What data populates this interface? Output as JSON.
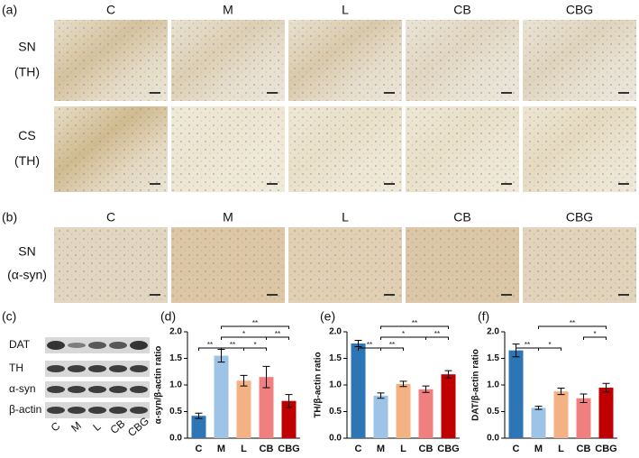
{
  "figure": {
    "panel_a": {
      "letter": "(a)",
      "columns": [
        "C",
        "M",
        "L",
        "CB",
        "CBG"
      ],
      "rows": [
        [
          "SN",
          "(TH)"
        ],
        [
          "CS",
          "(TH)"
        ]
      ]
    },
    "panel_b": {
      "letter": "(b)",
      "columns": [
        "C",
        "M",
        "L",
        "CB",
        "CBG"
      ],
      "rows": [
        [
          "SN",
          "(α-syn)"
        ]
      ]
    },
    "panel_c": {
      "letter": "(c)",
      "proteins": [
        "DAT",
        "TH",
        "α-syn",
        "β-actin"
      ],
      "lanes": [
        "C",
        "M",
        "L",
        "CB",
        "CBG"
      ]
    }
  },
  "chart_data": [
    {
      "type": "bar",
      "letter": "(d)",
      "ylabel": "α-syn/β-actin ratio",
      "categories": [
        "C",
        "M",
        "L",
        "CB",
        "CBG"
      ],
      "values": [
        0.42,
        1.55,
        1.08,
        1.15,
        0.7
      ],
      "errors": [
        0.05,
        0.12,
        0.1,
        0.2,
        0.12
      ],
      "colors": [
        "#2e75b6",
        "#9dc3e6",
        "#f4b183",
        "#f08080",
        "#c00000"
      ],
      "ylim": [
        0,
        2
      ],
      "yticks": [
        {
          "value": 0,
          "label": "0.0"
        },
        0.5,
        {
          "value": 1,
          "label": "1.0"
        },
        1.5,
        {
          "value": 2,
          "label": "2.0"
        }
      ],
      "brackets": [
        {
          "between": [
            0,
            1
          ],
          "row": 0,
          "label": "**"
        },
        {
          "between": [
            1,
            2
          ],
          "row": 0,
          "label": "**"
        },
        {
          "between": [
            2,
            3
          ],
          "row": 0,
          "label": "*"
        },
        {
          "between": [
            1,
            3
          ],
          "row": 1,
          "label": "*"
        },
        {
          "between": [
            3,
            4
          ],
          "row": 1,
          "label": "**"
        },
        {
          "between": [
            1,
            4
          ],
          "row": 2,
          "label": "**"
        }
      ]
    },
    {
      "type": "bar",
      "letter": "(e)",
      "ylabel": "TH/β-actin ratio",
      "categories": [
        "C",
        "M",
        "L",
        "CB",
        "CBG"
      ],
      "values": [
        1.78,
        0.8,
        1.02,
        0.92,
        1.2
      ],
      "errors": [
        0.06,
        0.05,
        0.05,
        0.06,
        0.07
      ],
      "colors": [
        "#2e75b6",
        "#9dc3e6",
        "#f4b183",
        "#f08080",
        "#c00000"
      ],
      "ylim": [
        0,
        2
      ],
      "yticks": [
        {
          "value": 0,
          "label": "0.0"
        },
        0.5,
        {
          "value": 1,
          "label": "1.0"
        },
        1.5,
        {
          "value": 2,
          "label": "2.0"
        }
      ],
      "brackets": [
        {
          "between": [
            0,
            1
          ],
          "row": 0,
          "label": "**"
        },
        {
          "between": [
            1,
            2
          ],
          "row": 0,
          "label": "**"
        },
        {
          "between": [
            1,
            3
          ],
          "row": 1,
          "label": "*"
        },
        {
          "between": [
            3,
            4
          ],
          "row": 1,
          "label": "**"
        },
        {
          "between": [
            1,
            4
          ],
          "row": 2,
          "label": "**"
        }
      ]
    },
    {
      "type": "bar",
      "letter": "(f)",
      "ylabel": "DAT/β-actin ratio",
      "categories": [
        "C",
        "M",
        "L",
        "CB",
        "CBG"
      ],
      "values": [
        1.65,
        0.57,
        0.88,
        0.75,
        0.95
      ],
      "errors": [
        0.12,
        0.03,
        0.06,
        0.08,
        0.08
      ],
      "colors": [
        "#2e75b6",
        "#9dc3e6",
        "#f4b183",
        "#f08080",
        "#c00000"
      ],
      "ylim": [
        0,
        2
      ],
      "yticks": [
        {
          "value": 0,
          "label": "0.0"
        },
        0.5,
        {
          "value": 1,
          "label": "1.0"
        },
        1.5,
        {
          "value": 2,
          "label": "2.0"
        }
      ],
      "brackets": [
        {
          "between": [
            0,
            1
          ],
          "row": 0,
          "label": "**"
        },
        {
          "between": [
            1,
            2
          ],
          "row": 0,
          "label": "*"
        },
        {
          "between": [
            3,
            4
          ],
          "row": 1,
          "label": "*"
        },
        {
          "between": [
            1,
            4
          ],
          "row": 2,
          "label": "**"
        }
      ]
    }
  ]
}
